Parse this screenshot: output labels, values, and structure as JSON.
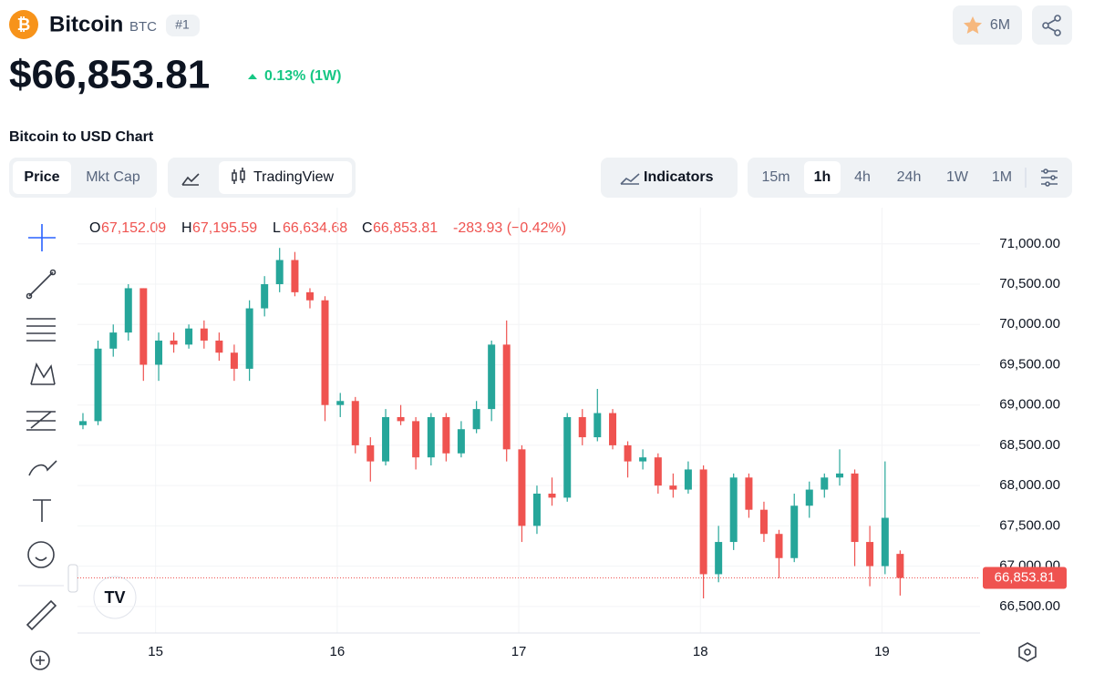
{
  "header": {
    "name": "Bitcoin",
    "symbol": "BTC",
    "rank": "#1",
    "watchlist": "6M",
    "price": "$66,853.81",
    "change": "0.13% (1W)",
    "chart_title": "Bitcoin to USD Chart"
  },
  "tabs": {
    "metric": [
      "Price",
      "Mkt Cap"
    ],
    "view": "TradingView",
    "indicators": "Indicators",
    "intervals": [
      "15m",
      "1h",
      "4h",
      "24h",
      "1W",
      "1M"
    ],
    "selected_interval": 1
  },
  "legend": {
    "items": [
      {
        "key": "O",
        "value": "67,152.09"
      },
      {
        "key": "H",
        "value": "67,195.59"
      },
      {
        "key": "L",
        "value": "66,634.68"
      },
      {
        "key": "C",
        "value": "66,853.81"
      }
    ],
    "change": "-283.93 (−0.42%)"
  },
  "chart_data": {
    "type": "candlestick",
    "x": [
      14.6,
      14.683,
      14.767,
      14.85,
      14.933,
      15.017,
      15.1,
      15.183,
      15.267,
      15.35,
      15.433,
      15.517,
      15.6,
      15.683,
      15.767,
      15.85,
      15.933,
      16.017,
      16.1,
      16.183,
      16.267,
      16.35,
      16.433,
      16.517,
      16.6,
      16.683,
      16.767,
      16.85,
      16.933,
      17.017,
      17.1,
      17.183,
      17.267,
      17.35,
      17.433,
      17.517,
      17.6,
      17.683,
      17.767,
      17.85,
      17.933,
      18.017,
      18.1,
      18.183,
      18.267,
      18.35,
      18.433,
      18.517,
      18.6,
      18.683,
      18.767,
      18.85,
      18.933,
      19.017,
      19.1
    ],
    "open": [
      68750,
      68800,
      69700,
      69900,
      70450,
      69500,
      69800,
      69750,
      69950,
      69800,
      69650,
      69450,
      70200,
      70500,
      70800,
      70400,
      70300,
      69000,
      69050,
      68500,
      68300,
      68850,
      68800,
      68350,
      68850,
      68400,
      68700,
      68950,
      69750,
      68450,
      67500,
      67900,
      67850,
      68850,
      68600,
      68900,
      68500,
      68300,
      68350,
      68000,
      67950,
      68200,
      66900,
      67300,
      68100,
      67700,
      67400,
      67100,
      67750,
      67950,
      68100,
      68150,
      67300,
      67000,
      67152.09
    ],
    "high": [
      68900,
      69800,
      70000,
      70500,
      70450,
      69900,
      69900,
      70000,
      70050,
      69900,
      69750,
      70300,
      70600,
      70950,
      70900,
      70450,
      70350,
      69150,
      69100,
      68600,
      68950,
      69000,
      68850,
      68900,
      68900,
      68800,
      69050,
      69800,
      70050,
      68500,
      68000,
      68100,
      68900,
      68950,
      69200,
      68950,
      68550,
      68450,
      68400,
      68150,
      68300,
      68250,
      67500,
      68150,
      68150,
      67800,
      67450,
      67900,
      68050,
      68150,
      68450,
      68200,
      67500,
      68300,
      67195.59
    ],
    "low": [
      68700,
      68750,
      69600,
      69800,
      69300,
      69300,
      69650,
      69700,
      69700,
      69550,
      69300,
      69300,
      70100,
      70400,
      70350,
      70200,
      68800,
      68850,
      68400,
      68050,
      68250,
      68750,
      68200,
      68250,
      68300,
      68350,
      68650,
      68800,
      68300,
      67300,
      67400,
      67750,
      67800,
      68500,
      68550,
      68450,
      68100,
      68200,
      67900,
      67850,
      67900,
      66600,
      66800,
      67200,
      67600,
      67300,
      66850,
      67050,
      67600,
      67850,
      68000,
      67000,
      66750,
      66900,
      66634.68
    ],
    "close": [
      68800,
      69700,
      69900,
      70450,
      69500,
      69800,
      69750,
      69950,
      69800,
      69650,
      69450,
      70200,
      70500,
      70800,
      70400,
      70300,
      69000,
      69050,
      68500,
      68300,
      68850,
      68800,
      68350,
      68850,
      68400,
      68700,
      68950,
      69750,
      68450,
      67500,
      67900,
      67850,
      68850,
      68600,
      68900,
      68500,
      68300,
      68350,
      68000,
      67950,
      68200,
      66900,
      67300,
      68100,
      67700,
      67400,
      67100,
      67750,
      67950,
      68100,
      68150,
      67300,
      67000,
      67600,
      66853.81
    ],
    "up_color": "#26a69a",
    "down_color": "#ef5350",
    "xlim": [
      14.57,
      19.54
    ],
    "xticks": [
      15,
      16,
      17,
      18,
      19
    ],
    "ylim": [
      66170,
      71450
    ],
    "yticks": [
      {
        "value": 66500,
        "label": "66,500.00"
      },
      {
        "value": 67000,
        "label": "67,000.00"
      },
      {
        "value": 67500,
        "label": "67,500.00"
      },
      {
        "value": 68000,
        "label": "68,000.00"
      },
      {
        "value": 68500,
        "label": "68,500.00"
      },
      {
        "value": 69000,
        "label": "69,000.00"
      },
      {
        "value": 69500,
        "label": "69,500.00"
      },
      {
        "value": 70000,
        "label": "70,000.00"
      },
      {
        "value": 70500,
        "label": "70,500.00"
      },
      {
        "value": 71000,
        "label": "71,000.00"
      }
    ],
    "last_price": 66853.81,
    "last_price_label": "66,853.81",
    "grid": true
  }
}
